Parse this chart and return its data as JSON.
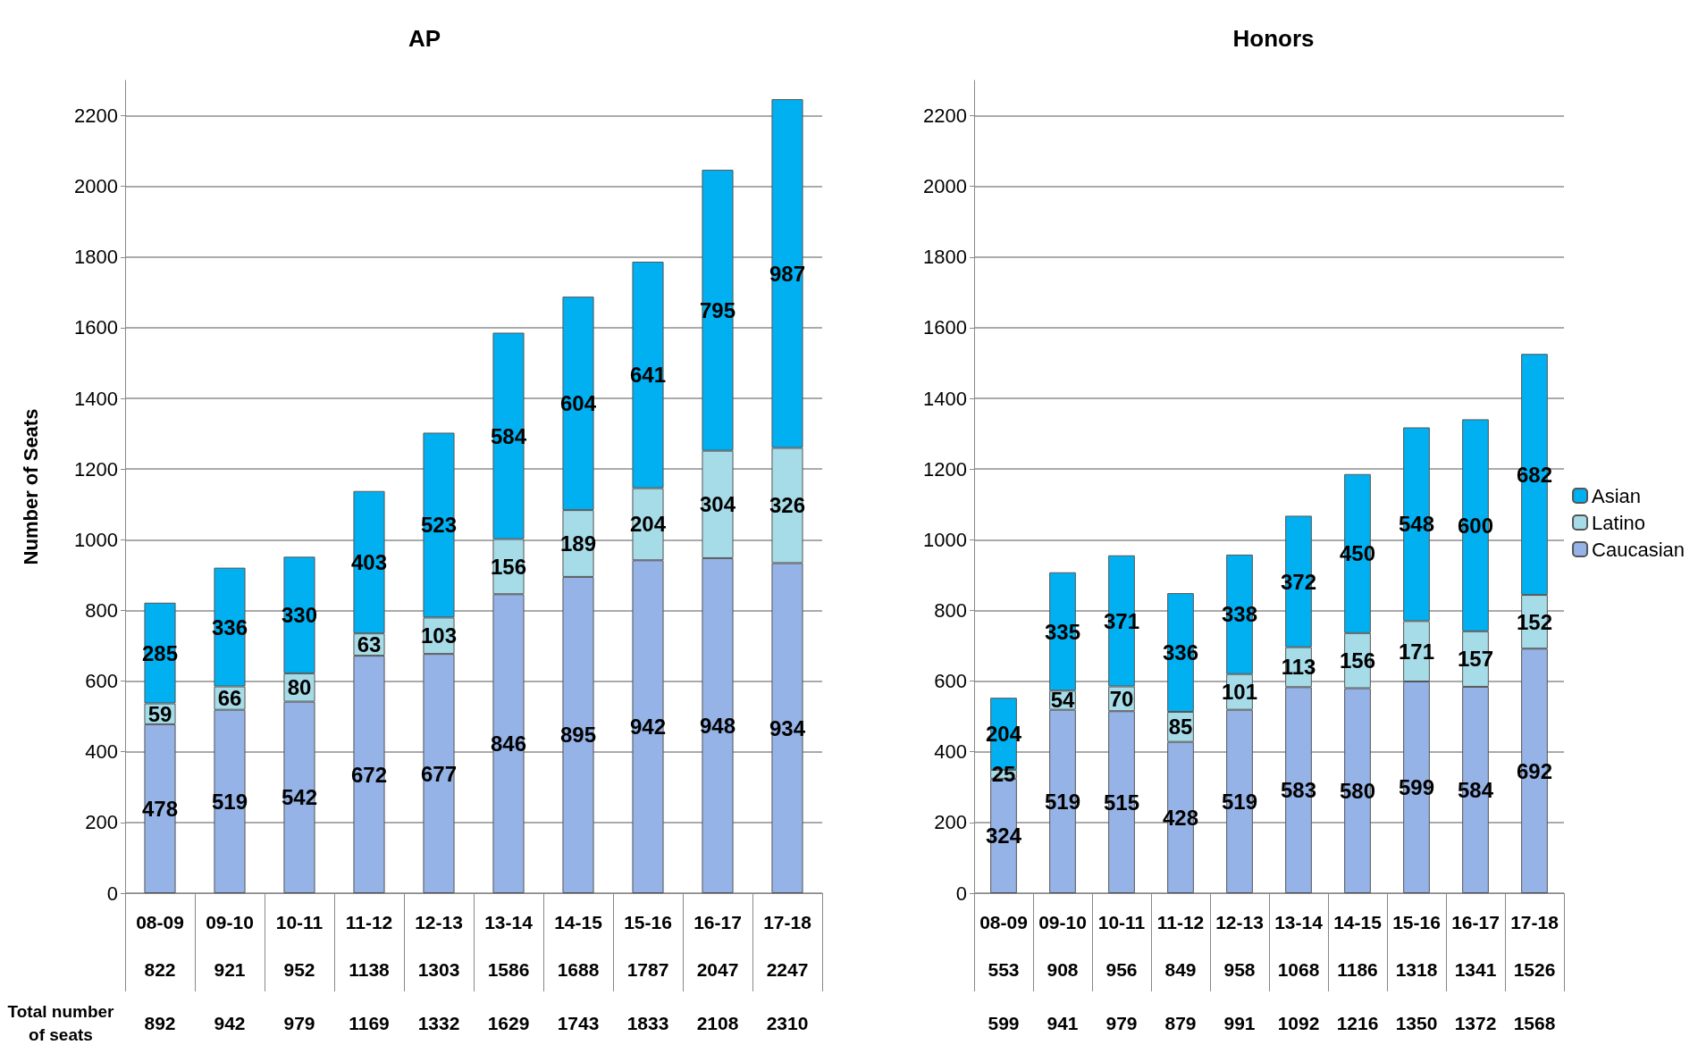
{
  "chart_data": [
    {
      "type": "bar",
      "stacked": true,
      "title": "AP",
      "ylabel": "Number of Seats",
      "categories": [
        "08-09",
        "09-10",
        "10-11",
        "11-12",
        "12-13",
        "13-14",
        "14-15",
        "15-16",
        "16-17",
        "17-18"
      ],
      "series": [
        {
          "color": "#95b3e6",
          "values": [
            478,
            519,
            542,
            672,
            677,
            846,
            895,
            942,
            948,
            934
          ]
        },
        {
          "color": "#a6dce8",
          "values": [
            59,
            66,
            80,
            63,
            103,
            156,
            189,
            204,
            304,
            326
          ]
        },
        {
          "color": "#00b0f0",
          "values": [
            285,
            336,
            330,
            403,
            523,
            584,
            604,
            641,
            795,
            987
          ]
        }
      ],
      "data_labels": true,
      "grid": "y",
      "legend": false,
      "ylim": [
        0,
        2300
      ],
      "yticks": [
        0,
        200,
        400,
        600,
        800,
        1000,
        1200,
        1400,
        1600,
        1800,
        2000,
        2200
      ],
      "annotations": [
        "822",
        "921",
        "952",
        "1138",
        "1303",
        "1586",
        "1688",
        "1787",
        "2047",
        "2247",
        "Total number of seats",
        "892",
        "942",
        "979",
        "1169",
        "1332",
        "1629",
        "1743",
        "1833",
        "2108",
        "2310"
      ]
    },
    {
      "type": "bar",
      "stacked": true,
      "title": "Honors",
      "categories": [
        "08-09",
        "09-10",
        "10-11",
        "11-12",
        "12-13",
        "13-14",
        "14-15",
        "15-16",
        "16-17",
        "17-18"
      ],
      "series": [
        {
          "name": "Caucasian",
          "color": "#95b3e6",
          "values": [
            324,
            519,
            515,
            428,
            519,
            583,
            580,
            599,
            584,
            692
          ]
        },
        {
          "name": "Latino",
          "color": "#a6dce8",
          "values": [
            25,
            54,
            70,
            85,
            101,
            113,
            156,
            171,
            157,
            152
          ]
        },
        {
          "name": "Asian",
          "color": "#00b0f0",
          "values": [
            204,
            335,
            371,
            336,
            338,
            372,
            450,
            548,
            600,
            682
          ]
        }
      ],
      "data_labels": true,
      "grid": "y",
      "legend": "right",
      "ylim": [
        0,
        2300
      ],
      "yticks": [
        0,
        200,
        400,
        600,
        800,
        1000,
        1200,
        1400,
        1600,
        1800,
        2000,
        2200
      ],
      "annotations": [
        "553",
        "908",
        "956",
        "849",
        "958",
        "1068",
        "1186",
        "1318",
        "1341",
        "1526",
        "599",
        "941",
        "979",
        "879",
        "991",
        "1092",
        "1216",
        "1350",
        "1372",
        "1568"
      ]
    }
  ]
}
